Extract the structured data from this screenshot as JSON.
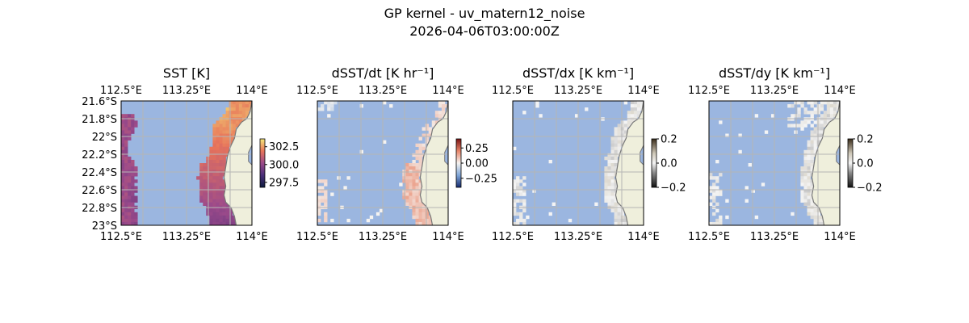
{
  "figure": {
    "title_line1": "GP kernel - uv_matern12_noise",
    "title_line2": "2026-04-06T03:00:00Z"
  },
  "colors": {
    "ocean_mask": "#9bb6e0",
    "land": "#efefdc",
    "coast": "#777777",
    "grid": "#b5b5b5"
  },
  "chart_data": [
    {
      "type": "heatmap",
      "title": "SST [K]",
      "x_ticks": [
        "112.5°E",
        "113.25°E",
        "114°E"
      ],
      "x_tick_values": [
        112.5,
        113.25,
        114.0
      ],
      "y_ticks": [
        "21.6°S",
        "21.8°S",
        "22°S",
        "22.2°S",
        "22.4°S",
        "22.6°S",
        "22.8°S",
        "23°S"
      ],
      "y_tick_values": [
        -21.6,
        -21.8,
        -22.0,
        -22.2,
        -22.4,
        -22.6,
        -22.8,
        -23.0
      ],
      "xlim": [
        112.5,
        114.0
      ],
      "ylim": [
        -23.0,
        -21.6
      ],
      "colormap": "thermal",
      "colorbar_ticks": [
        "302.5",
        "300.0",
        "297.5"
      ],
      "colorbar_tick_values": [
        302.5,
        300.0,
        297.5
      ],
      "colorbar_range": [
        296.8,
        303.6
      ],
      "grid": true
    },
    {
      "type": "heatmap",
      "title": "dSST/dt [K hr⁻¹]",
      "x_ticks": [
        "112.5°E",
        "113.25°E",
        "114°E"
      ],
      "x_tick_values": [
        112.5,
        113.25,
        114.0
      ],
      "xlim": [
        112.5,
        114.0
      ],
      "ylim": [
        -23.0,
        -21.6
      ],
      "colormap": "diverging",
      "colorbar_ticks": [
        "0.25",
        "0.00",
        "−0.25"
      ],
      "colorbar_tick_values": [
        0.25,
        0.0,
        -0.25
      ],
      "colorbar_range": [
        -0.4,
        0.4
      ],
      "grid": true
    },
    {
      "type": "heatmap",
      "title": "dSST/dx [K km⁻¹]",
      "x_ticks": [
        "112.5°E",
        "113.25°E",
        "114°E"
      ],
      "x_tick_values": [
        112.5,
        113.25,
        114.0
      ],
      "xlim": [
        112.5,
        114.0
      ],
      "ylim": [
        -23.0,
        -21.6
      ],
      "colormap": "gray-diverging",
      "colorbar_ticks": [
        "0.2",
        "0.0",
        "−0.2"
      ],
      "colorbar_tick_values": [
        0.2,
        0.0,
        -0.2
      ],
      "colorbar_range": [
        -0.2,
        0.2
      ],
      "grid": true
    },
    {
      "type": "heatmap",
      "title": "dSST/dy [K km⁻¹]",
      "x_ticks": [
        "112.5°E",
        "113.25°E",
        "114°E"
      ],
      "x_tick_values": [
        112.5,
        113.25,
        114.0
      ],
      "xlim": [
        112.5,
        114.0
      ],
      "ylim": [
        -23.0,
        -21.6
      ],
      "colormap": "gray-diverging",
      "colorbar_ticks": [
        "0.2",
        "0.0",
        "−0.2"
      ],
      "colorbar_tick_values": [
        0.2,
        0.0,
        -0.2
      ],
      "colorbar_range": [
        -0.2,
        0.2
      ],
      "grid": true
    }
  ]
}
